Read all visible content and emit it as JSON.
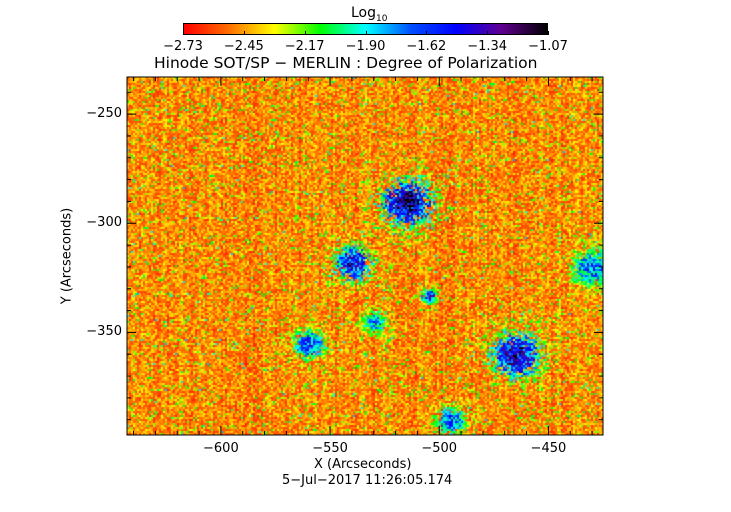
{
  "chart_data": {
    "type": "heatmap",
    "title": "Hinode SOT/SP − MERLIN : Degree of Polarization",
    "xlabel": "X (Arcseconds)",
    "ylabel": "Y (Arcseconds)",
    "footer": "5−Jul−2017 11:26:05.174",
    "xlim": [
      -643,
      -425
    ],
    "ylim": [
      -397,
      -233
    ],
    "xticks": [
      -600,
      -550,
      -500,
      -450
    ],
    "xtick_labels": [
      "−600",
      "−550",
      "−500",
      "−450"
    ],
    "yticks": [
      -250,
      -300,
      -350
    ],
    "ytick_labels": [
      "−250",
      "−300",
      "−350"
    ],
    "colorbar": {
      "label_main": "Log",
      "label_sub": "10",
      "range": [
        -2.73,
        -1.07
      ],
      "tick_labels": [
        "−2.73",
        "−2.45",
        "−2.17",
        "−1.90",
        "−1.62",
        "−1.34",
        "−1.07"
      ],
      "colormap": [
        "#ff0000",
        "#ff7000",
        "#ffff00",
        "#00ff00",
        "#00ffff",
        "#0050ff",
        "#0000ff",
        "#600090",
        "#000000"
      ]
    },
    "strong_features": [
      {
        "x": -515,
        "y": -290,
        "r": 9,
        "strength": 0.85
      },
      {
        "x": -540,
        "y": -318,
        "r": 7,
        "strength": 0.75
      },
      {
        "x": -465,
        "y": -360,
        "r": 9,
        "strength": 0.8
      },
      {
        "x": -560,
        "y": -355,
        "r": 6,
        "strength": 0.65
      },
      {
        "x": -495,
        "y": -390,
        "r": 6,
        "strength": 0.6
      },
      {
        "x": -430,
        "y": -320,
        "r": 8,
        "strength": 0.6
      },
      {
        "x": -505,
        "y": -333,
        "r": 3,
        "strength": 0.7
      },
      {
        "x": -530,
        "y": -345,
        "r": 5,
        "strength": 0.55
      }
    ]
  }
}
